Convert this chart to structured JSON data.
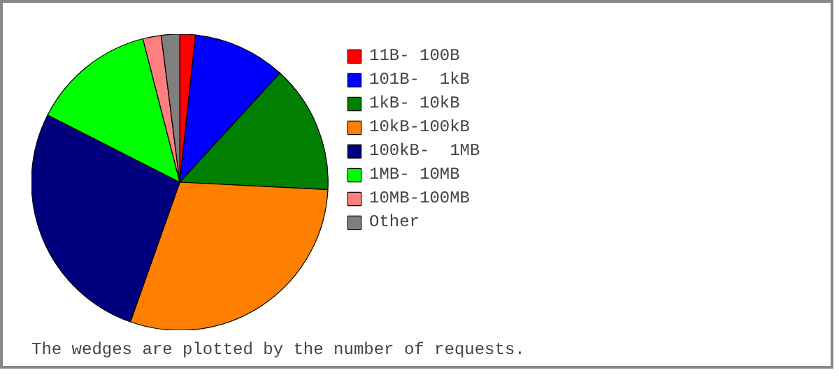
{
  "chart_data": {
    "type": "pie",
    "categories": [
      "11B- 100B",
      "101B-  1kB",
      "1kB- 10kB",
      "10kB-100kB",
      "100kB-  1MB",
      "1MB- 10MB",
      "10MB-100MB",
      "Other"
    ],
    "values": [
      1.7,
      10.1,
      14,
      29.6,
      27.1,
      13.5,
      2,
      2
    ],
    "colors": [
      "#ff0000",
      "#0000ff",
      "#007f00",
      "#ff7f00",
      "#00007f",
      "#00ff00",
      "#ff7f7f",
      "#7f7f7f"
    ],
    "legend": "right",
    "annotations": [
      "The wedges are plotted by the number of requests."
    ]
  }
}
